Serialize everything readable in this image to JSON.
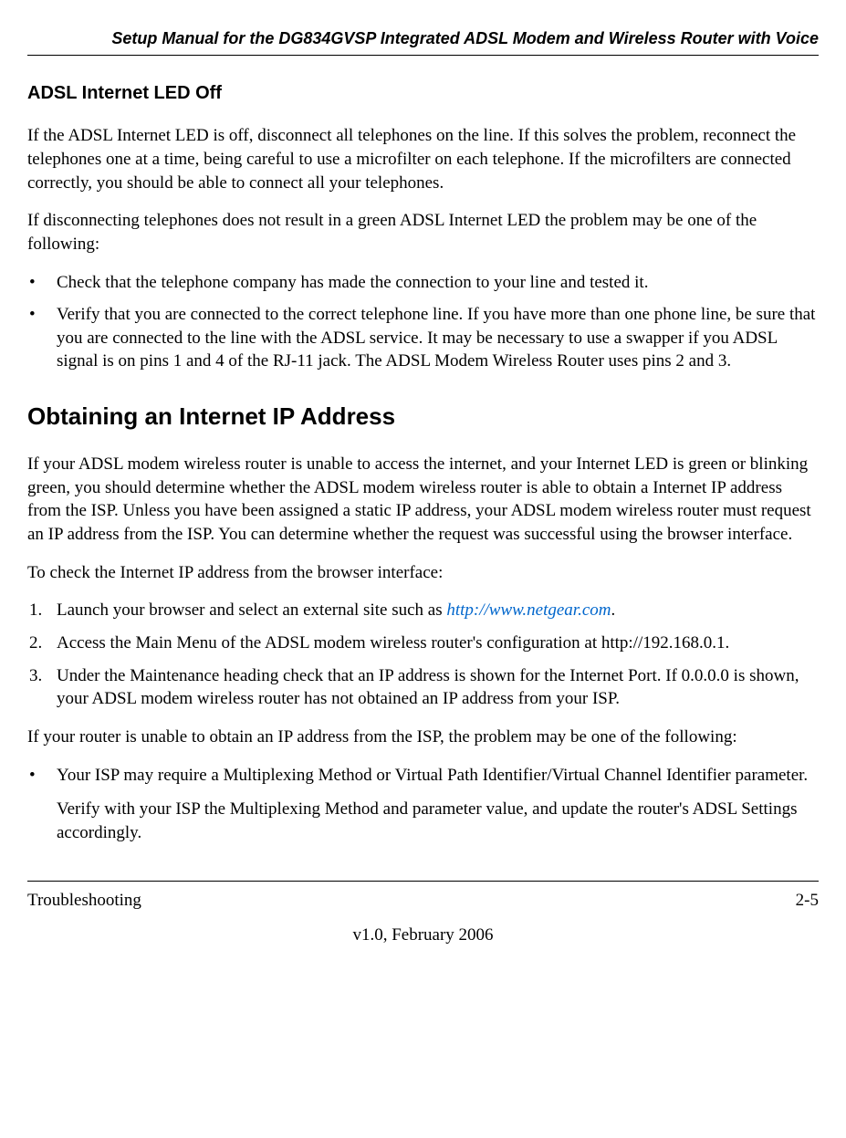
{
  "header": {
    "title": "Setup Manual for the DG834GVSP Integrated ADSL Modem and Wireless Router with Voice"
  },
  "section1": {
    "heading": "ADSL Internet LED Off",
    "p1": "If the ADSL Internet LED is off, disconnect all telephones on the line. If this solves the problem, reconnect the telephones one at a time, being careful to use a microfilter on each telephone. If the microfilters are connected correctly, you should be able to connect all your telephones.",
    "p2": "If disconnecting telephones does not result in a green ADSL Internet LED the problem may be one of the following:",
    "bullets": [
      "Check that the telephone company has made the connection to your line and tested it.",
      "Verify that you are connected to the correct telephone line. If you have more than one phone line, be sure that you are connected to the line with the ADSL service. It may be necessary to use a swapper if you ADSL signal is on pins 1 and 4 of the RJ-11 jack. The ADSL Modem Wireless Router uses pins 2 and 3."
    ]
  },
  "section2": {
    "heading": "Obtaining an Internet IP Address",
    "p1": "If your ADSL modem wireless router is unable to access the internet, and your Internet LED is green or blinking green, you should determine whether the ADSL modem wireless router is able to obtain a Internet IP address from the ISP. Unless you have been assigned a static IP address, your ADSL modem wireless router must request an IP address from the ISP. You can determine whether the request was successful using the browser interface.",
    "p2": "To check the Internet IP address from the browser interface:",
    "steps": [
      {
        "num": "1.",
        "text_before": "Launch your browser and select an external site such as ",
        "link": "http://www.netgear.com",
        "text_after": "."
      },
      {
        "num": "2.",
        "text": "Access the Main Menu of the ADSL modem wireless router's configuration at http://192.168.0.1."
      },
      {
        "num": "3.",
        "text": "Under the Maintenance heading check that an IP address is shown for the Internet Port. If 0.0.0.0 is shown, your ADSL modem wireless router has not obtained an IP address from your ISP."
      }
    ],
    "p3": "If your router is unable to obtain an IP address from the ISP, the problem may be one of the following:",
    "bullets2": [
      {
        "main": "Your ISP may require a Multiplexing Method or Virtual Path Identifier/Virtual Channel Identifier parameter.",
        "sub": "Verify with your ISP the Multiplexing Method and parameter value, and update the router's ADSL Settings accordingly."
      }
    ]
  },
  "footer": {
    "left": "Troubleshooting",
    "right": "2-5",
    "version": "v1.0, February 2006"
  },
  "bullet_char": "•"
}
